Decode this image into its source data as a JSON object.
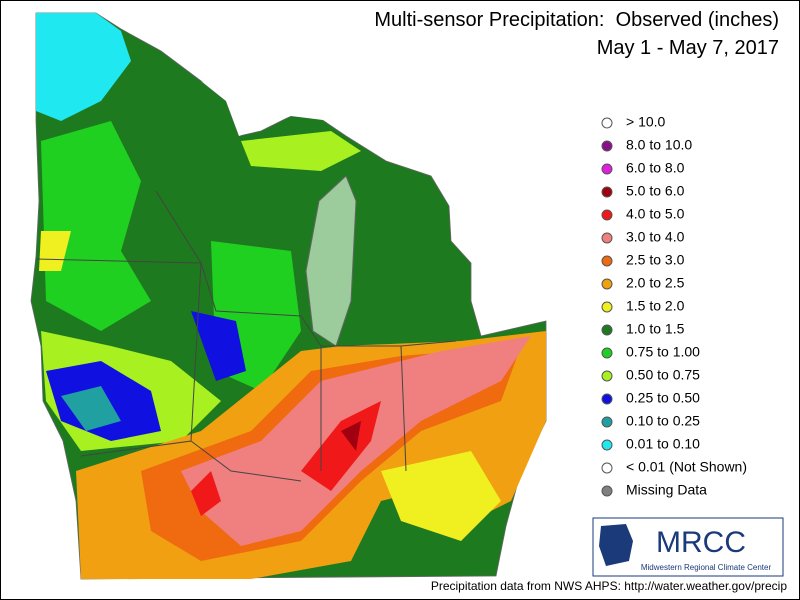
{
  "header": {
    "title": "Multi-sensor Precipitation:  Observed (inches)",
    "subtitle": "May 1 - May 7, 2017"
  },
  "legend": {
    "items": [
      {
        "label": "> 10.0",
        "color": "#ffffff"
      },
      {
        "label": "8.0 to 10.0",
        "color": "#8a0e8a"
      },
      {
        "label": "6.0 to 8.0",
        "color": "#e020e0"
      },
      {
        "label": "5.0 to 6.0",
        "color": "#a00010"
      },
      {
        "label": "4.0 to 5.0",
        "color": "#f01818"
      },
      {
        "label": "3.0 to 4.0",
        "color": "#f08080"
      },
      {
        "label": "2.5 to 3.0",
        "color": "#f06a10"
      },
      {
        "label": "2.0 to 2.5",
        "color": "#f0a010"
      },
      {
        "label": "1.5 to 2.0",
        "color": "#f0f020"
      },
      {
        "label": "1.0 to 1.5",
        "color": "#1e7a1e"
      },
      {
        "label": "0.75 to 1.00",
        "color": "#20d020"
      },
      {
        "label": "0.50 to 0.75",
        "color": "#a8f020"
      },
      {
        "label": "0.25 to 0.50",
        "color": "#1010e0"
      },
      {
        "label": "0.10 to 0.25",
        "color": "#20a0a0"
      },
      {
        "label": "0.01 to 0.10",
        "color": "#20e8f0"
      },
      {
        "label": "< 0.01 (Not Shown)",
        "color": "#ffffff"
      },
      {
        "label": "Missing Data",
        "color": "#808080"
      }
    ]
  },
  "logo": {
    "name": "MRCC",
    "full_name": "Midwestern Regional Climate Center"
  },
  "footer": "Precipitation data from NWS AHPS: http://water.weather.gov/precip"
}
